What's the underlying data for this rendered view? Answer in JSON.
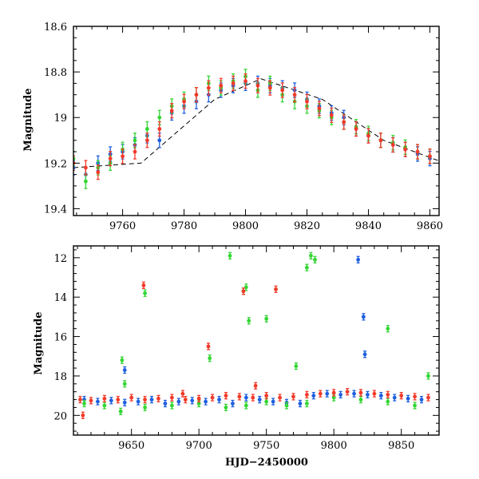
{
  "chart_data": [
    {
      "type": "scatter",
      "title": "",
      "xlabel": "",
      "ylabel": "Magnitude",
      "xlim": [
        9744,
        9863
      ],
      "ylim": [
        19.43,
        18.6
      ],
      "y_inverted": true,
      "x_ticks": [
        9760,
        9780,
        9800,
        9820,
        9840,
        9860
      ],
      "y_ticks": [
        18.6,
        18.8,
        19,
        19.2,
        19.4
      ],
      "y_tick_labels": [
        "18.6",
        "18.8",
        "19",
        "19.2",
        "19.4"
      ],
      "error_bars": true,
      "grid": false,
      "series": [
        {
          "color": "#1f5fe0",
          "x": [
            9744,
            9748,
            9752,
            9756,
            9760,
            9764,
            9768,
            9772,
            9776,
            9780,
            9784,
            9788,
            9792,
            9796,
            9800,
            9804,
            9808,
            9812,
            9816,
            9820,
            9824,
            9828,
            9832,
            9836,
            9840,
            9844,
            9848,
            9852,
            9856,
            9860
          ],
          "y": [
            19.22,
            19.25,
            19.2,
            19.16,
            19.15,
            19.12,
            19.08,
            19.1,
            18.98,
            18.95,
            18.93,
            18.9,
            18.88,
            18.86,
            18.85,
            18.85,
            18.86,
            18.87,
            18.88,
            18.92,
            18.95,
            18.98,
            19.0,
            19.05,
            19.08,
            19.1,
            19.12,
            19.14,
            19.16,
            19.18
          ]
        },
        {
          "color": "#33d633",
          "x": [
            9744,
            9748,
            9752,
            9756,
            9760,
            9764,
            9768,
            9772,
            9776,
            9780,
            9784,
            9788,
            9792,
            9796,
            9800,
            9804,
            9808,
            9812,
            9816,
            9820,
            9824,
            9828,
            9832,
            9836,
            9840,
            9844,
            9848,
            9852,
            9856,
            9860
          ],
          "y": [
            19.18,
            19.28,
            19.22,
            19.2,
            19.14,
            19.1,
            19.05,
            19.0,
            18.95,
            18.92,
            18.9,
            18.85,
            18.87,
            18.84,
            18.82,
            18.88,
            18.85,
            18.9,
            18.93,
            18.95,
            18.97,
            19.0,
            19.02,
            19.04,
            19.07,
            19.1,
            19.11,
            19.13,
            19.15,
            19.17
          ]
        },
        {
          "color": "#f23a2a",
          "x": [
            9744,
            9748,
            9752,
            9756,
            9760,
            9764,
            9768,
            9772,
            9776,
            9780,
            9784,
            9788,
            9792,
            9796,
            9800,
            9804,
            9808,
            9812,
            9816,
            9820,
            9824,
            9828,
            9832,
            9836,
            9840,
            9844,
            9848,
            9852,
            9856,
            9860
          ],
          "y": [
            19.2,
            19.22,
            19.24,
            19.18,
            19.17,
            19.15,
            19.1,
            19.05,
            18.97,
            18.93,
            18.9,
            18.87,
            18.86,
            18.85,
            18.84,
            18.86,
            18.87,
            18.88,
            18.9,
            18.93,
            18.96,
            18.99,
            19.02,
            19.05,
            19.08,
            19.1,
            19.12,
            19.14,
            19.15,
            19.17
          ]
        }
      ],
      "model_curve": {
        "x": [
          9744,
          9766,
          9790,
          9805,
          9825,
          9845,
          9863
        ],
        "y": [
          19.22,
          19.2,
          18.92,
          18.83,
          18.92,
          19.1,
          19.19
        ]
      }
    },
    {
      "type": "scatter",
      "title": "",
      "xlabel": "HJD−2450000",
      "ylabel": "Magnitude",
      "xlim": [
        9607,
        9878
      ],
      "ylim": [
        21.0,
        11.4
      ],
      "y_inverted": true,
      "x_ticks": [
        9650,
        9700,
        9750,
        9800,
        9850
      ],
      "y_ticks": [
        12,
        14,
        16,
        18,
        20
      ],
      "error_bars": true,
      "grid": false,
      "series": [
        {
          "color": "#1f5fe0",
          "x": [
            9615,
            9625,
            9635,
            9645,
            9655,
            9665,
            9675,
            9685,
            9695,
            9705,
            9715,
            9725,
            9735,
            9745,
            9755,
            9765,
            9775,
            9785,
            9795,
            9805,
            9815,
            9825,
            9835,
            9845,
            9855,
            9865,
            9645,
            9818,
            9822,
            9823
          ],
          "y": [
            19.2,
            19.3,
            19.25,
            19.35,
            19.3,
            19.2,
            19.4,
            19.3,
            19.25,
            19.3,
            19.2,
            19.4,
            19.1,
            19.2,
            19.3,
            19.35,
            19.4,
            19.0,
            18.9,
            18.95,
            18.9,
            18.95,
            19.0,
            19.1,
            19.15,
            19.2,
            17.7,
            12.1,
            15.0,
            16.9
          ]
        },
        {
          "color": "#33d633",
          "x": [
            9615,
            9630,
            9642,
            9660,
            9680,
            9700,
            9720,
            9735,
            9750,
            9765,
            9780,
            9800,
            9820,
            9840,
            9860,
            9643,
            9645,
            9660,
            9708,
            9723,
            9733,
            9735,
            9737,
            9750,
            9780,
            9783,
            9786,
            9840,
            9870,
            9772
          ],
          "y": [
            19.4,
            19.5,
            19.8,
            19.6,
            19.5,
            19.4,
            19.6,
            19.5,
            19.3,
            19.5,
            19.4,
            19.1,
            19.2,
            19.3,
            19.5,
            17.2,
            18.4,
            13.8,
            17.1,
            11.9,
            13.7,
            13.5,
            15.2,
            15.1,
            12.5,
            11.9,
            12.1,
            15.6,
            18.0,
            17.5
          ]
        },
        {
          "color": "#f23a2a",
          "x": [
            9612,
            9620,
            9630,
            9640,
            9650,
            9660,
            9670,
            9680,
            9690,
            9700,
            9710,
            9720,
            9730,
            9740,
            9750,
            9760,
            9770,
            9780,
            9790,
            9800,
            9810,
            9820,
            9830,
            9840,
            9850,
            9860,
            9870,
            9659,
            9707,
            9733,
            9757,
            9614,
            9688,
            9742
          ],
          "y": [
            19.2,
            19.25,
            19.15,
            19.2,
            19.1,
            19.2,
            19.15,
            19.1,
            19.2,
            19.15,
            19.1,
            19.0,
            19.05,
            19.1,
            19.0,
            19.1,
            19.05,
            18.95,
            18.9,
            18.85,
            18.8,
            18.85,
            18.9,
            18.95,
            19.0,
            19.05,
            19.1,
            13.4,
            16.5,
            13.7,
            13.6,
            20.0,
            18.9,
            18.5
          ]
        }
      ]
    }
  ]
}
